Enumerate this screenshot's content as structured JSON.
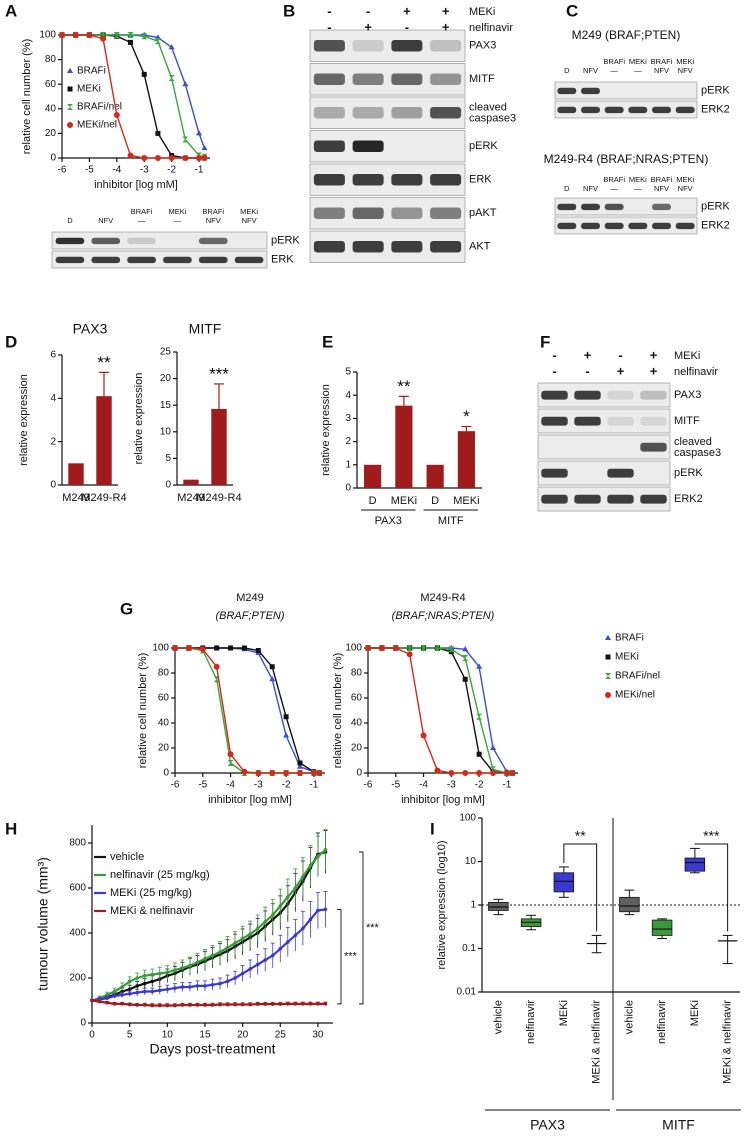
{
  "panel_labels": [
    "A",
    "B",
    "C",
    "D",
    "E",
    "F",
    "G",
    "H",
    "I"
  ],
  "chart_data": [
    {
      "type": "line",
      "x_label": "inhibitor [log mM]",
      "y_label": "relative cell number (%)",
      "x": [
        -6,
        -5.5,
        -5,
        -4.5,
        -4,
        -3.5,
        -3,
        -2.5,
        -2,
        -1.5,
        -1,
        -0.8
      ],
      "xlim": [
        -6,
        -0.6
      ],
      "xticks": [
        -6,
        -5,
        -4,
        -3,
        -2,
        -1
      ],
      "ylim": [
        0,
        100
      ],
      "yticks": [
        0,
        20,
        40,
        60,
        80,
        100
      ],
      "series": [
        {
          "name": "BRAFi",
          "color": "#3a4fd0",
          "marker": "triangle",
          "values": [
            100,
            100,
            100,
            100,
            100,
            100,
            100,
            98,
            90,
            60,
            20,
            8
          ]
        },
        {
          "name": "MEKi",
          "color": "#111111",
          "marker": "square",
          "values": [
            100,
            100,
            100,
            100,
            99,
            94,
            68,
            20,
            2,
            0,
            0,
            0
          ]
        },
        {
          "name": "BRAFi/nel",
          "color": "#3aa83a",
          "marker": "bowtie",
          "values": [
            100,
            100,
            100,
            100,
            100,
            100,
            99,
            95,
            65,
            15,
            2,
            1
          ]
        },
        {
          "name": "MEKi/nel",
          "color": "#d42a1e",
          "marker": "circle",
          "values": [
            100,
            100,
            100,
            97,
            35,
            2,
            0,
            0,
            0,
            0,
            0,
            0
          ]
        }
      ]
    },
    {
      "type": "bar",
      "title": "PAX3",
      "y_label": "relative expression",
      "categories": [
        "M249",
        "M249-R4"
      ],
      "values": [
        1,
        4.1
      ],
      "errors": [
        null,
        1.1
      ],
      "significance": [
        null,
        "**"
      ],
      "color": "#a01c1c",
      "ylim": [
        0,
        6
      ],
      "yticks": [
        0,
        2,
        4,
        6
      ]
    },
    {
      "type": "bar",
      "title": "MITF",
      "y_label": "relative expression",
      "categories": [
        "M249",
        "M249-R4"
      ],
      "values": [
        1,
        14.3
      ],
      "errors": [
        null,
        4.7
      ],
      "significance": [
        null,
        "***"
      ],
      "color": "#a01c1c",
      "ylim": [
        0,
        25
      ],
      "yticks": [
        0,
        5,
        10,
        15,
        20,
        25
      ]
    },
    {
      "type": "bar",
      "y_label": "relative expression",
      "categories": [
        "D",
        "MEKi",
        "D",
        "MEKi"
      ],
      "groups": [
        "PAX3",
        "MITF"
      ],
      "values": [
        1,
        3.55,
        1,
        2.45
      ],
      "errors": [
        null,
        0.4,
        null,
        0.2
      ],
      "significance": [
        null,
        "**",
        null,
        "*"
      ],
      "color": "#a01c1c",
      "ylim": [
        0,
        5
      ],
      "yticks": [
        0,
        1,
        2,
        3,
        4,
        5
      ]
    },
    {
      "type": "line",
      "title": "M249",
      "subtitle": "(BRAF;PTEN)",
      "x_label": "inhibitor [log mM]",
      "y_label": "relative cell number (%)",
      "x": [
        -6,
        -5.5,
        -5,
        -4.5,
        -4,
        -3.5,
        -3,
        -2.5,
        -2,
        -1.5,
        -1,
        -0.8
      ],
      "xlim": [
        -6,
        -0.6
      ],
      "xticks": [
        -6,
        -5,
        -4,
        -3,
        -2,
        -1
      ],
      "ylim": [
        0,
        100
      ],
      "yticks": [
        0,
        20,
        40,
        60,
        80,
        100
      ],
      "series": [
        {
          "color": "#3a4fd0",
          "marker": "triangle",
          "values": [
            100,
            100,
            100,
            100,
            100,
            99,
            96,
            75,
            30,
            5,
            1,
            0
          ]
        },
        {
          "color": "#111111",
          "marker": "square",
          "values": [
            100,
            100,
            100,
            100,
            100,
            100,
            98,
            85,
            45,
            8,
            1,
            0
          ]
        },
        {
          "color": "#3aa83a",
          "marker": "bowtie",
          "values": [
            100,
            100,
            98,
            75,
            8,
            0,
            0,
            0,
            0,
            0,
            0,
            0
          ]
        },
        {
          "color": "#d42a1e",
          "marker": "circle",
          "values": [
            100,
            100,
            99,
            85,
            15,
            1,
            0,
            0,
            0,
            0,
            0,
            0
          ]
        }
      ]
    },
    {
      "type": "line",
      "title": "M249-R4",
      "subtitle": "(BRAF;NRAS;PTEN)",
      "x_label": "inhibitor [log mM]",
      "y_label": "relative cell number (%)",
      "x": [
        -6,
        -5.5,
        -5,
        -4.5,
        -4,
        -3.5,
        -3,
        -2.5,
        -2,
        -1.5,
        -1,
        -0.8
      ],
      "xlim": [
        -6,
        -0.6
      ],
      "xticks": [
        -6,
        -5,
        -4,
        -3,
        -2,
        -1
      ],
      "ylim": [
        0,
        100
      ],
      "yticks": [
        0,
        20,
        40,
        60,
        80,
        100
      ],
      "series": [
        {
          "name": "BRAFi",
          "color": "#3a4fd0",
          "marker": "triangle",
          "values": [
            100,
            100,
            100,
            100,
            100,
            100,
            100,
            99,
            85,
            20,
            1,
            0
          ]
        },
        {
          "name": "MEKi",
          "color": "#111111",
          "marker": "square",
          "values": [
            100,
            100,
            100,
            100,
            100,
            100,
            97,
            75,
            15,
            1,
            0,
            0
          ]
        },
        {
          "name": "BRAFi/nel",
          "color": "#3aa83a",
          "marker": "bowtie",
          "values": [
            100,
            100,
            100,
            100,
            100,
            100,
            99,
            92,
            45,
            3,
            0,
            0
          ]
        },
        {
          "name": "MEKi/nel",
          "color": "#d42a1e",
          "marker": "circle",
          "values": [
            100,
            100,
            100,
            95,
            30,
            2,
            0,
            0,
            0,
            0,
            0,
            0
          ]
        }
      ]
    },
    {
      "type": "line",
      "x_label": "Days post-treatment",
      "y_label": "tumour volume (mm³)",
      "x": [
        0,
        1,
        2,
        3,
        4,
        5,
        6,
        7,
        8,
        9,
        10,
        11,
        12,
        13,
        14,
        15,
        16,
        17,
        18,
        19,
        20,
        21,
        22,
        23,
        24,
        25,
        26,
        27,
        28,
        29,
        30,
        31
      ],
      "xlim": [
        0,
        32
      ],
      "xticks": [
        0,
        5,
        10,
        15,
        20,
        25,
        30
      ],
      "ylim": [
        0,
        880
      ],
      "yticks": [
        0,
        200,
        400,
        600,
        800
      ],
      "annotations": [
        "***",
        "***"
      ],
      "series": [
        {
          "name": "vehicle",
          "color": "#111111",
          "values": [
            100,
            105,
            115,
            125,
            140,
            150,
            165,
            175,
            185,
            195,
            210,
            220,
            235,
            250,
            260,
            275,
            290,
            305,
            320,
            340,
            360,
            380,
            400,
            430,
            460,
            490,
            530,
            580,
            630,
            690,
            750,
            760
          ],
          "errors": [
            5,
            8,
            10,
            12,
            15,
            18,
            20,
            22,
            25,
            28,
            30,
            32,
            35,
            38,
            40,
            42,
            45,
            48,
            50,
            55,
            58,
            60,
            65,
            68,
            70,
            75,
            80,
            85,
            90,
            90,
            95,
            95
          ]
        },
        {
          "name": "nelfinavir (25 mg/kg)",
          "color": "#3a9a3a",
          "values": [
            100,
            110,
            125,
            140,
            160,
            185,
            200,
            210,
            215,
            220,
            225,
            235,
            245,
            255,
            270,
            285,
            300,
            315,
            335,
            355,
            375,
            395,
            420,
            450,
            480,
            520,
            560,
            600,
            650,
            700,
            740,
            770
          ],
          "errors": [
            5,
            10,
            12,
            15,
            18,
            20,
            22,
            25,
            25,
            28,
            30,
            32,
            35,
            38,
            40,
            42,
            45,
            48,
            50,
            52,
            55,
            58,
            60,
            65,
            70,
            75,
            80,
            85,
            85,
            90,
            90,
            90
          ]
        },
        {
          "name": "MEKi (25 mg/kg)",
          "color": "#3a3ad0",
          "values": [
            100,
            105,
            110,
            120,
            125,
            130,
            135,
            140,
            140,
            145,
            150,
            155,
            160,
            160,
            165,
            165,
            170,
            175,
            185,
            200,
            220,
            240,
            260,
            280,
            300,
            330,
            360,
            390,
            420,
            460,
            500,
            505
          ],
          "errors": [
            5,
            8,
            10,
            10,
            12,
            12,
            15,
            15,
            15,
            18,
            18,
            20,
            20,
            20,
            22,
            22,
            25,
            25,
            28,
            30,
            35,
            40,
            45,
            50,
            55,
            60,
            65,
            70,
            75,
            80,
            80,
            80
          ]
        },
        {
          "name": "MEKi & nelfinavir",
          "color": "#a01c1c",
          "values": [
            100,
            95,
            90,
            85,
            85,
            82,
            80,
            80,
            78,
            78,
            78,
            78,
            80,
            80,
            80,
            80,
            80,
            82,
            82,
            82,
            82,
            82,
            84,
            84,
            84,
            84,
            85,
            85,
            85,
            85,
            85,
            85
          ],
          "errors": [
            5,
            6,
            6,
            7,
            7,
            7,
            7,
            8,
            8,
            8,
            8,
            8,
            8,
            8,
            8,
            8,
            8,
            8,
            8,
            8,
            8,
            8,
            8,
            8,
            8,
            8,
            8,
            8,
            8,
            8,
            8,
            8
          ]
        }
      ]
    },
    {
      "type": "box",
      "y_label": "relative expression (log10)",
      "y_scale": "log",
      "ylim": [
        0.01,
        100
      ],
      "yticks": [
        0.01,
        0.1,
        1,
        10,
        100
      ],
      "reference_line": 1,
      "categories": [
        "vehicle",
        "nelfinavir",
        "MEKi",
        "MEKi & nelfinavir",
        "vehicle",
        "nelfinavir",
        "MEKi",
        "MEKi & nelfinavir"
      ],
      "groups": [
        "PAX3",
        "MITF"
      ],
      "annotations": [
        "**",
        "***"
      ],
      "boxes": [
        {
          "min": 0.6,
          "q1": 0.75,
          "median": 0.9,
          "q3": 1.15,
          "max": 1.35,
          "color": "#606060"
        },
        {
          "min": 0.27,
          "q1": 0.32,
          "median": 0.4,
          "q3": 0.48,
          "max": 0.58,
          "color": "#3a9a3a"
        },
        {
          "min": 1.5,
          "q1": 2.0,
          "median": 3.5,
          "q3": 5.5,
          "max": 7.5,
          "color": "#3a3ad0"
        },
        {
          "min": 0.08,
          "q1": 0.13,
          "median": 0.13,
          "q3": 0.13,
          "max": 0.2,
          "color": "#ffffff"
        },
        {
          "min": 0.6,
          "q1": 0.7,
          "median": 0.95,
          "q3": 1.5,
          "max": 2.2,
          "color": "#606060"
        },
        {
          "min": 0.17,
          "q1": 0.2,
          "median": 0.28,
          "q3": 0.45,
          "max": 0.48,
          "color": "#3a9a3a"
        },
        {
          "min": 5.5,
          "q1": 6,
          "median": 9.5,
          "q3": 12,
          "max": 20,
          "color": "#3a3ad0"
        },
        {
          "min": 0.045,
          "q1": 0.15,
          "median": 0.15,
          "q3": 0.15,
          "max": 0.2,
          "color": "#ffffff"
        }
      ]
    }
  ],
  "blots": {
    "A": {
      "lanes": [
        [
          "D"
        ],
        [
          "NFV"
        ],
        [
          "BRAFi",
          "—"
        ],
        [
          "MEKi",
          "—"
        ],
        [
          "BRAFi",
          "NFV"
        ],
        [
          "MEKi",
          "NFV"
        ]
      ],
      "bands": [
        "pERK",
        "ERK"
      ]
    },
    "B": {
      "treatments": [
        {
          "name": "MEKi",
          "signs": [
            "-",
            "-",
            "+",
            "+"
          ]
        },
        {
          "name": "nelfinavir",
          "signs": [
            "-",
            "+",
            "-",
            "+"
          ]
        }
      ],
      "bands": [
        "PAX3",
        "MITF",
        [
          "cleaved",
          "caspase3"
        ],
        "pERK",
        "ERK",
        "pAKT",
        "AKT"
      ]
    },
    "C": [
      {
        "title": "M249 (BRAF;PTEN)",
        "lanes": [
          [
            "D"
          ],
          [
            "NFV"
          ],
          [
            "BRAFi",
            "—"
          ],
          [
            "MEKi",
            "—"
          ],
          [
            "BRAFi",
            "NFV"
          ],
          [
            "MEKi",
            "NFV"
          ]
        ],
        "bands": [
          "pERK",
          "ERK2"
        ]
      },
      {
        "title": "M249-R4 (BRAF;NRAS;PTEN)",
        "lanes": [
          [
            "D"
          ],
          [
            "NFV"
          ],
          [
            "BRAFi",
            "—"
          ],
          [
            "MEKi",
            "—"
          ],
          [
            "BRAFi",
            "NFV"
          ],
          [
            "MEKi",
            "NFV"
          ]
        ],
        "bands": [
          "pERK",
          "ERK2"
        ]
      }
    ],
    "F": {
      "treatments": [
        {
          "name": "MEKi",
          "signs": [
            "-",
            "+",
            "-",
            "+"
          ]
        },
        {
          "name": "nelfinavir",
          "signs": [
            "-",
            "-",
            "+",
            "+"
          ]
        }
      ],
      "bands": [
        "PAX3",
        "MITF",
        [
          "cleaved",
          "caspase3"
        ],
        "pERK",
        "ERK2"
      ]
    }
  }
}
